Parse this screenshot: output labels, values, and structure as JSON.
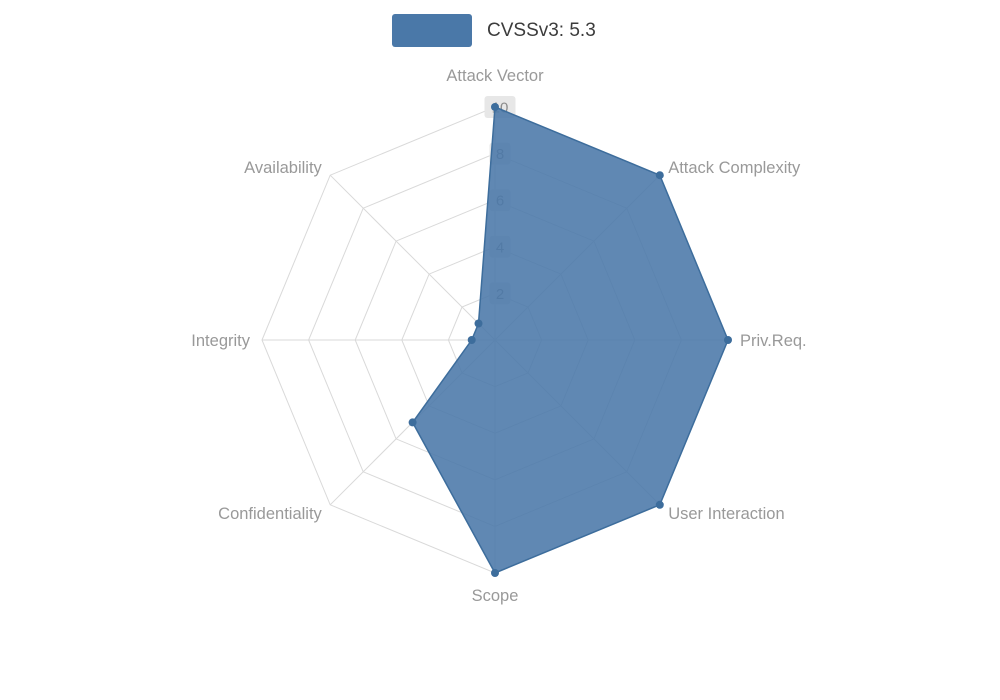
{
  "legend": {
    "label": "CVSSv3: 5.3",
    "swatch_color": "#4a78a8"
  },
  "chart_data": {
    "type": "radar",
    "title": "CVSSv3: 5.3",
    "axes": [
      "Attack Vector",
      "Attack Complexity",
      "Priv.Req.",
      "User Interaction",
      "Scope",
      "Confidentiality",
      "Integrity",
      "Availability"
    ],
    "series": [
      {
        "name": "CVSSv3: 5.3",
        "values": [
          10,
          10,
          10,
          10,
          10,
          5,
          1,
          1
        ]
      }
    ],
    "scale": {
      "min": 0,
      "max": 10,
      "ticks": [
        2,
        4,
        6,
        8,
        10
      ]
    },
    "rings": 5,
    "grid": true,
    "legend_position": "top",
    "colors": {
      "fill": "#4a78a8",
      "stroke": "#3d6d9c",
      "grid": "#d9d9d9",
      "axis_label": "#999999",
      "tick_label": "#8c8c8c",
      "tick_bg": "#e7e7e7",
      "legend_text": "#3c3c3c"
    }
  }
}
